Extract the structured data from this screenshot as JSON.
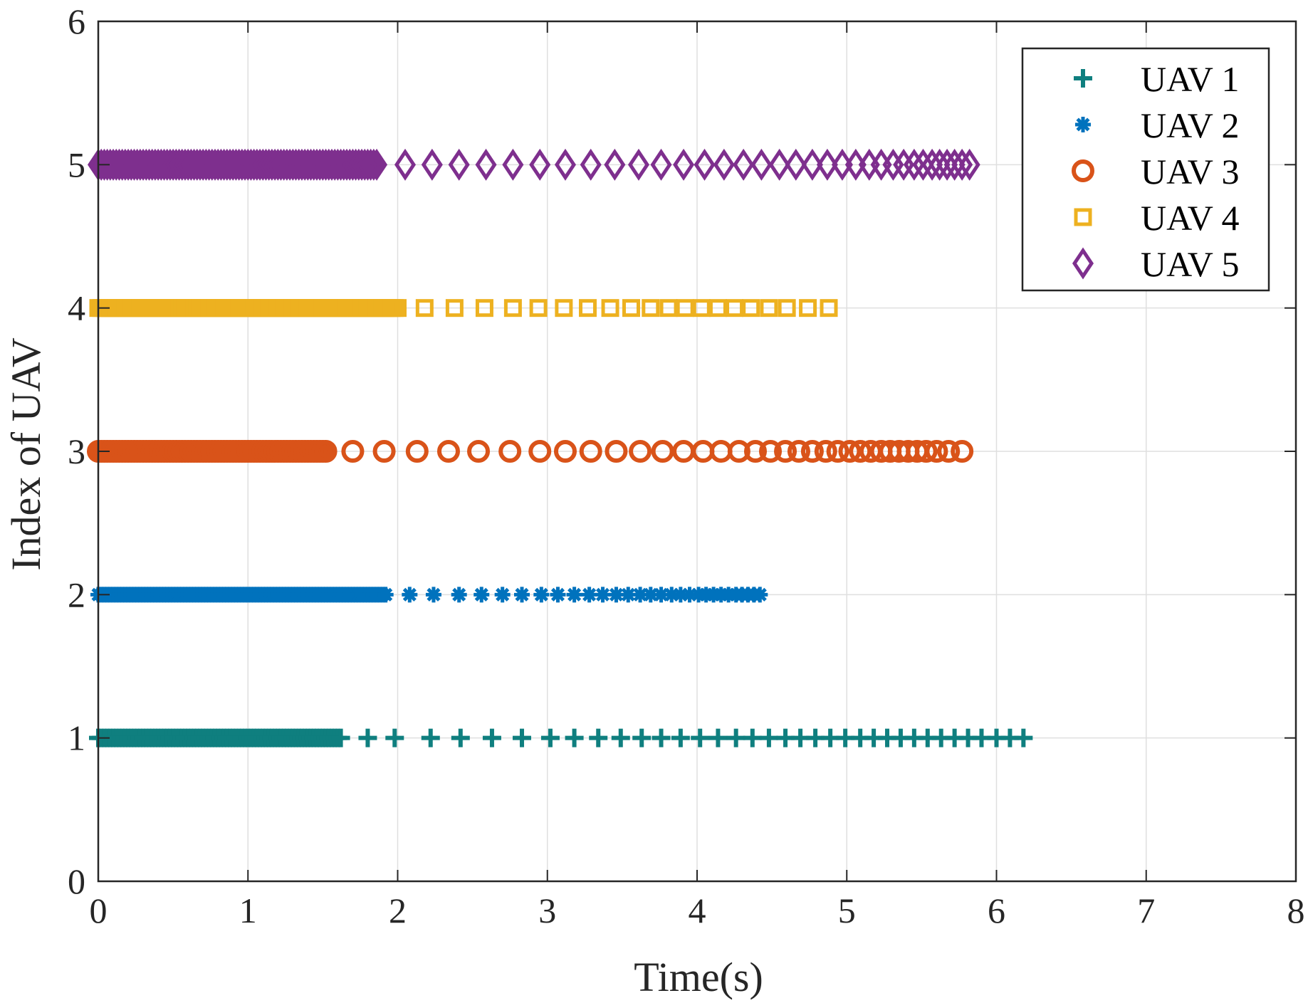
{
  "chart_data": {
    "type": "scatter",
    "title": "",
    "xlabel": "Time(s)",
    "ylabel": "Index of UAV",
    "xlim": [
      0,
      8
    ],
    "ylim": [
      0,
      6
    ],
    "xticks": [
      "0",
      "1",
      "2",
      "3",
      "4",
      "5",
      "6",
      "7",
      "8"
    ],
    "yticks": [
      "0",
      "1",
      "2",
      "3",
      "4",
      "5",
      "6"
    ],
    "grid": true,
    "legend_position": "top-right",
    "series": [
      {
        "name": "UAV 1",
        "y": 1,
        "marker": "plus",
        "color": "#0f7f7f",
        "dense_start": 0,
        "dense_end": 1.62,
        "dense_step": 0.02,
        "sparse_x": [
          1.8,
          1.98,
          2.22,
          2.42,
          2.63,
          2.83,
          3.02,
          3.18,
          3.34,
          3.49,
          3.63,
          3.76,
          3.89,
          4.02,
          4.14,
          4.26,
          4.37,
          4.48,
          4.59,
          4.69,
          4.79,
          4.89,
          4.99,
          5.09,
          5.18,
          5.27,
          5.36,
          5.45,
          5.54,
          5.63,
          5.72,
          5.81,
          5.9,
          6.0,
          6.09,
          6.18
        ]
      },
      {
        "name": "UAV 2",
        "y": 2,
        "marker": "asterisk",
        "color": "#0072bd",
        "dense_start": 0,
        "dense_end": 1.92,
        "dense_step": 0.02,
        "sparse_x": [
          2.08,
          2.24,
          2.41,
          2.56,
          2.7,
          2.83,
          2.96,
          3.07,
          3.18,
          3.28,
          3.37,
          3.46,
          3.54,
          3.62,
          3.69,
          3.76,
          3.83,
          3.89,
          3.95,
          4.01,
          4.06,
          4.11,
          4.16,
          4.21,
          4.26,
          4.3,
          4.34,
          4.38,
          4.42
        ]
      },
      {
        "name": "UAV 3",
        "y": 3,
        "marker": "circle",
        "color": "#d95319",
        "dense_start": 0,
        "dense_end": 1.53,
        "dense_step": 0.02,
        "sparse_x": [
          1.7,
          1.91,
          2.13,
          2.34,
          2.54,
          2.75,
          2.95,
          3.12,
          3.29,
          3.46,
          3.62,
          3.77,
          3.91,
          4.04,
          4.16,
          4.28,
          4.39,
          4.49,
          4.59,
          4.68,
          4.77,
          4.86,
          4.94,
          5.02,
          5.09,
          5.16,
          5.23,
          5.29,
          5.35,
          5.41,
          5.47,
          5.53,
          5.6,
          5.68,
          5.77
        ]
      },
      {
        "name": "UAV 4",
        "y": 4,
        "marker": "square",
        "color": "#edb120",
        "dense_start": 0,
        "dense_end": 2.0,
        "dense_step": 0.02,
        "sparse_x": [
          2.18,
          2.38,
          2.58,
          2.77,
          2.94,
          3.11,
          3.27,
          3.42,
          3.56,
          3.69,
          3.81,
          3.92,
          4.03,
          4.14,
          4.25,
          4.36,
          4.48,
          4.6,
          4.74,
          4.88
        ]
      },
      {
        "name": "UAV 5",
        "y": 5,
        "marker": "diamond",
        "color": "#7e2f8e",
        "dense_start": 0,
        "dense_end": 1.87,
        "dense_step": 0.02,
        "sparse_x": [
          2.05,
          2.23,
          2.41,
          2.59,
          2.77,
          2.95,
          3.12,
          3.29,
          3.45,
          3.61,
          3.76,
          3.91,
          4.05,
          4.18,
          4.31,
          4.43,
          4.55,
          4.66,
          4.77,
          4.87,
          4.97,
          5.06,
          5.15,
          5.23,
          5.31,
          5.38,
          5.45,
          5.51,
          5.57,
          5.62,
          5.67,
          5.72,
          5.77,
          5.82
        ]
      }
    ]
  }
}
